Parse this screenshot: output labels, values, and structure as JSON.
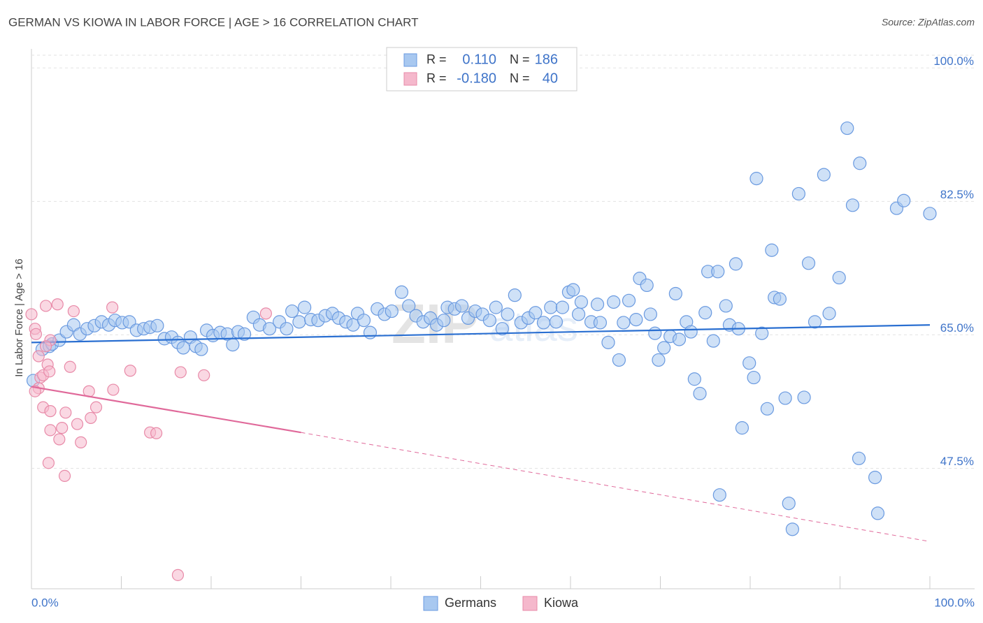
{
  "chart_data": {
    "type": "scatter",
    "title": "GERMAN VS KIOWA IN LABOR FORCE | AGE > 16 CORRELATION CHART",
    "source": "Source: ZipAtlas.com",
    "ylabel": "In Labor Force | Age > 16",
    "watermark": [
      "ZIP",
      "atlas"
    ],
    "xlim": [
      0,
      100
    ],
    "ylim": [
      31.7,
      102.5
    ],
    "xticks": [
      {
        "value": 0,
        "label": "0.0%"
      },
      {
        "value": 100,
        "label": "100.0%"
      }
    ],
    "xtick_marks": [
      10,
      20,
      30,
      40,
      50,
      60,
      70,
      80,
      90,
      100
    ],
    "yticks": [
      {
        "value": 47.5,
        "label": "47.5%"
      },
      {
        "value": 65,
        "label": "65.0%"
      },
      {
        "value": 82.5,
        "label": "82.5%"
      },
      {
        "value": 100,
        "label": "100.0%"
      }
    ],
    "grid": true,
    "stats_labels": {
      "r": "R =",
      "n": "N ="
    },
    "series": [
      {
        "name": "Germans",
        "color": "#6a9ae0",
        "fill": "#a8c8f0",
        "line_color": "#2a6fd1",
        "r": 0.11,
        "r_label": "0.110",
        "n": 186,
        "trend": {
          "x": [
            0,
            100
          ],
          "y": [
            64.0,
            66.3
          ]
        },
        "x": [
          0.2,
          1.2,
          2.0,
          2.3,
          3.1,
          3.9,
          4.7,
          5.4,
          6.2,
          7.0,
          7.8,
          8.6,
          9.3,
          10.1,
          10.9,
          11.7,
          12.5,
          13.2,
          14.0,
          14.8,
          15.6,
          16.3,
          16.9,
          17.7,
          18.3,
          18.9,
          19.5,
          20.2,
          21.0,
          21.8,
          22.4,
          23.0,
          23.7,
          24.7,
          25.4,
          26.5,
          27.6,
          28.4,
          29.0,
          29.8,
          30.4,
          31.1,
          31.9,
          32.7,
          33.5,
          34.2,
          35.0,
          35.8,
          36.3,
          37.0,
          37.7,
          38.5,
          39.3,
          40.1,
          41.2,
          42.0,
          42.8,
          43.6,
          44.4,
          45.1,
          45.9,
          46.3,
          47.1,
          47.9,
          48.6,
          49.4,
          50.2,
          51.0,
          51.7,
          52.4,
          53.0,
          53.8,
          54.5,
          55.3,
          56.1,
          57.0,
          57.8,
          58.4,
          59.1,
          59.8,
          60.3,
          60.9,
          61.2,
          62.3,
          63.0,
          63.3,
          64.2,
          64.8,
          65.4,
          65.9,
          66.5,
          67.3,
          67.7,
          68.5,
          68.9,
          69.4,
          69.8,
          70.4,
          71.1,
          71.7,
          72.1,
          72.9,
          73.4,
          73.8,
          74.4,
          75.0,
          75.3,
          75.9,
          76.4,
          77.3,
          77.7,
          78.4,
          78.7,
          79.1,
          79.9,
          80.4,
          80.7,
          81.3,
          81.9,
          82.4,
          82.7,
          83.3,
          83.9,
          84.3,
          84.7,
          85.4,
          86.0,
          86.5,
          87.2,
          88.2,
          88.8,
          89.9,
          90.8,
          91.4,
          92.1,
          92.2,
          93.9,
          94.2,
          96.3,
          97.1,
          100,
          76.6
        ],
        "values": [
          59.0,
          63.1,
          63.5,
          63.8,
          64.3,
          65.4,
          66.3,
          65.1,
          65.8,
          66.2,
          66.7,
          66.3,
          66.9,
          66.6,
          66.7,
          65.6,
          65.8,
          66.0,
          66.2,
          64.5,
          64.7,
          64.0,
          63.3,
          64.7,
          63.5,
          63.1,
          65.6,
          64.9,
          65.3,
          65.1,
          63.7,
          65.4,
          65.1,
          67.3,
          66.3,
          65.8,
          66.7,
          65.8,
          68.1,
          66.7,
          68.6,
          67.0,
          66.9,
          67.5,
          67.8,
          67.2,
          66.7,
          66.3,
          67.8,
          66.9,
          65.3,
          68.4,
          67.7,
          68.1,
          70.6,
          68.8,
          67.5,
          66.7,
          67.2,
          66.3,
          66.9,
          68.6,
          68.4,
          68.8,
          67.2,
          68.1,
          67.7,
          66.9,
          68.6,
          65.8,
          67.7,
          70.2,
          66.6,
          67.2,
          67.9,
          66.6,
          68.6,
          66.7,
          68.6,
          70.6,
          70.9,
          67.7,
          69.3,
          66.7,
          69.0,
          66.6,
          64.0,
          69.3,
          61.7,
          66.6,
          69.5,
          67.0,
          72.4,
          71.5,
          67.7,
          65.2,
          61.7,
          63.3,
          64.8,
          70.4,
          64.4,
          66.7,
          65.4,
          59.2,
          57.3,
          67.9,
          73.3,
          64.2,
          73.3,
          68.8,
          66.3,
          74.3,
          65.8,
          52.8,
          61.3,
          59.4,
          85.5,
          65.2,
          55.3,
          76.1,
          69.9,
          69.7,
          56.7,
          42.9,
          39.5,
          83.5,
          56.8,
          74.4,
          66.7,
          86.0,
          67.8,
          72.5,
          92.1,
          82.0,
          48.8,
          87.5,
          46.3,
          41.6,
          81.6,
          82.6,
          80.9,
          44.0
        ]
      },
      {
        "name": "Kiowa",
        "color": "#e88aa8",
        "fill": "#f5b8cc",
        "line_color": "#e0699a",
        "r": -0.18,
        "r_label": "-0.180",
        "n": 40,
        "trend": {
          "x": [
            0,
            30
          ],
          "y": [
            58.2,
            52.2
          ]
        },
        "trend_extension": {
          "x": [
            30,
            100
          ],
          "y": [
            52.2,
            37.9
          ]
        },
        "x": [
          0,
          0.4,
          0.5,
          0.8,
          1.0,
          0.8,
          1.3,
          1.6,
          1.8,
          2.0,
          2.1,
          1.3,
          2.1,
          2.1,
          1.9,
          2.9,
          3.1,
          3.4,
          3.7,
          3.8,
          4.3,
          4.7,
          5.1,
          5.5,
          6.4,
          6.6,
          7.2,
          9.0,
          9.1,
          11.0,
          13.2,
          13.9,
          16.6,
          16.3,
          19.2,
          26.1,
          1.6,
          0.4
        ],
        "values": [
          67.7,
          65.8,
          65.1,
          62.2,
          59.4,
          58.0,
          59.7,
          68.8,
          61.1,
          60.2,
          64.3,
          55.5,
          55.0,
          52.5,
          48.2,
          69.0,
          51.3,
          52.8,
          46.5,
          54.8,
          60.8,
          68.1,
          53.3,
          50.9,
          57.6,
          54.1,
          55.5,
          68.6,
          57.8,
          60.3,
          52.2,
          52.1,
          60.1,
          33.5,
          59.7,
          67.8,
          63.5,
          57.6
        ]
      }
    ]
  }
}
